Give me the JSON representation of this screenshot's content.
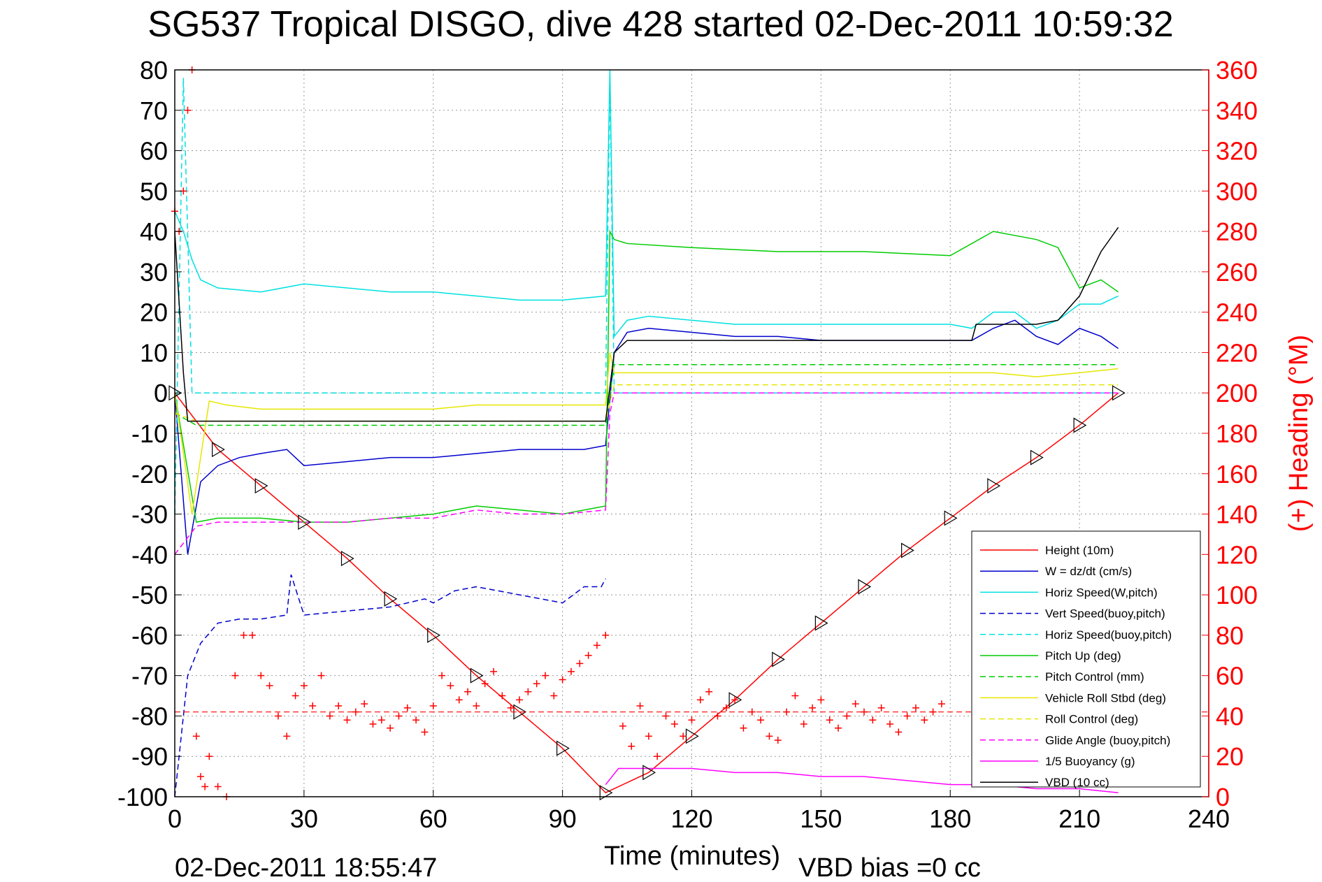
{
  "chart_data": {
    "type": "line",
    "title": "SG537 Tropical DISGO, dive 428 started 02-Dec-2011 10:59:32",
    "xlabel": "Time (minutes)",
    "ylabel": "",
    "y2label": "(+) Heading (°M)",
    "xlim": [
      0,
      240
    ],
    "ylim": [
      -100,
      80
    ],
    "y2lim": [
      0,
      360
    ],
    "xticks": [
      0,
      30,
      60,
      90,
      120,
      150,
      180,
      210,
      240
    ],
    "yticks": [
      -100,
      -90,
      -80,
      -70,
      -60,
      -50,
      -40,
      -30,
      -20,
      -10,
      0,
      10,
      20,
      30,
      40,
      50,
      60,
      70,
      80
    ],
    "y2ticks": [
      0,
      20,
      40,
      60,
      80,
      100,
      120,
      140,
      160,
      180,
      200,
      220,
      240,
      260,
      280,
      300,
      320,
      340,
      360
    ],
    "grid": true,
    "legend_position": "bottom-right",
    "footer_left": "02-Dec-2011 18:55:47",
    "footer_right": "VBD bias =0 cc",
    "colors": {
      "height": "#ff0000",
      "w": "#0000cc",
      "horiz_speed": "#00e0e0",
      "pitch": "#00cc00",
      "roll": "#e6e600",
      "glide": "#ff00ff",
      "vbd": "#000000",
      "heading": "#ff0000",
      "right_axis": "#ff0000"
    },
    "series": [
      {
        "name": "Height (10m)",
        "color": "#ff0000",
        "dash": "solid",
        "axis": "left",
        "x": [
          0,
          10,
          20,
          30,
          40,
          50,
          60,
          70,
          80,
          90,
          100,
          110,
          120,
          130,
          140,
          150,
          160,
          170,
          180,
          190,
          200,
          210,
          219
        ],
        "y": [
          0,
          -14,
          -23,
          -32,
          -41,
          -51,
          -60,
          -70,
          -79,
          -88,
          -99,
          -94,
          -85,
          -76,
          -66,
          -57,
          -48,
          -39,
          -31,
          -23,
          -16,
          -8,
          0
        ]
      },
      {
        "name": "W = dz/dt (cm/s)",
        "color": "#0000cc",
        "dash": "solid",
        "axis": "left",
        "x": [
          0,
          3,
          6,
          10,
          15,
          20,
          26,
          30,
          40,
          50,
          60,
          70,
          80,
          90,
          95,
          100,
          102,
          105,
          110,
          120,
          130,
          140,
          150,
          160,
          170,
          180,
          185,
          190,
          195,
          200,
          205,
          210,
          215,
          219
        ],
        "y": [
          0,
          -40,
          -22,
          -18,
          -16,
          -15,
          -14,
          -18,
          -17,
          -16,
          -16,
          -15,
          -14,
          -14,
          -14,
          -13,
          10,
          15,
          16,
          15,
          14,
          14,
          13,
          13,
          13,
          13,
          13,
          16,
          18,
          14,
          12,
          16,
          14,
          11
        ]
      },
      {
        "name": "Horiz Speed(W,pitch)",
        "color": "#00e0e0",
        "dash": "solid",
        "axis": "left",
        "x": [
          0,
          2,
          4,
          6,
          10,
          20,
          30,
          40,
          50,
          60,
          70,
          80,
          90,
          100,
          101,
          102,
          105,
          110,
          120,
          130,
          140,
          150,
          160,
          170,
          180,
          185,
          190,
          195,
          200,
          205,
          210,
          215,
          219
        ],
        "y": [
          45,
          40,
          33,
          28,
          26,
          25,
          27,
          26,
          25,
          25,
          24,
          23,
          23,
          24,
          80,
          14,
          18,
          19,
          18,
          17,
          17,
          17,
          17,
          17,
          17,
          16,
          20,
          20,
          16,
          18,
          22,
          22,
          24
        ]
      },
      {
        "name": "Vert Speed(buoy,pitch)",
        "color": "#0000cc",
        "dash": "dashed",
        "axis": "left",
        "x": [
          0,
          3,
          6,
          10,
          15,
          20,
          26,
          27,
          30,
          40,
          50,
          58,
          60,
          65,
          70,
          80,
          90,
          95,
          99,
          100
        ],
        "y": [
          -100,
          -70,
          -62,
          -57,
          -56,
          -56,
          -55,
          -45,
          -55,
          -54,
          -53,
          -51,
          -52,
          -49,
          -48,
          -50,
          -52,
          -48,
          -48,
          -46
        ]
      },
      {
        "name": "Horiz Speed(buoy,pitch)",
        "color": "#00e0e0",
        "dash": "dashed",
        "axis": "left",
        "x": [
          0,
          2,
          4,
          100,
          101,
          102,
          219
        ],
        "y": [
          -30,
          78,
          0,
          0,
          78,
          0,
          0
        ]
      },
      {
        "name": "Pitch Up (deg)",
        "color": "#00cc00",
        "dash": "solid",
        "axis": "left",
        "x": [
          0,
          5,
          10,
          20,
          30,
          40,
          50,
          60,
          65,
          70,
          80,
          90,
          95,
          100,
          101,
          102,
          105,
          120,
          140,
          160,
          180,
          190,
          200,
          205,
          210,
          215,
          219
        ],
        "y": [
          0,
          -32,
          -31,
          -31,
          -32,
          -32,
          -31,
          -30,
          -29,
          -28,
          -29,
          -30,
          -29,
          -28,
          40,
          38,
          37,
          36,
          35,
          35,
          34,
          40,
          38,
          36,
          26,
          28,
          25
        ]
      },
      {
        "name": "Pitch Control (mm)",
        "color": "#00cc00",
        "dash": "dashed",
        "axis": "left",
        "x": [
          0,
          5,
          100,
          102,
          219
        ],
        "y": [
          -5,
          -8,
          -8,
          7,
          7
        ]
      },
      {
        "name": "Vehicle Roll Stbd (deg)",
        "color": "#e6e600",
        "dash": "solid",
        "axis": "left",
        "x": [
          0,
          4,
          8,
          12,
          20,
          30,
          40,
          50,
          60,
          70,
          80,
          90,
          100,
          101,
          102,
          110,
          120,
          140,
          160,
          180,
          190,
          200,
          210,
          219
        ],
        "y": [
          0,
          -30,
          -2,
          -3,
          -4,
          -4,
          -4,
          -4,
          -4,
          -3,
          -3,
          -3,
          -3,
          10,
          5,
          5,
          5,
          5,
          5,
          5,
          5,
          4,
          5,
          6
        ]
      },
      {
        "name": "Roll Control (deg)",
        "color": "#e6e600",
        "dash": "dashed",
        "axis": "left",
        "x": [
          0,
          5,
          100,
          102,
          219
        ],
        "y": [
          -5,
          -7,
          -7,
          2,
          2
        ]
      },
      {
        "name": "Glide Angle (buoy,pitch)",
        "color": "#ff00ff",
        "dash": "dashed",
        "axis": "left",
        "x": [
          0,
          5,
          10,
          20,
          30,
          40,
          50,
          60,
          70,
          80,
          90,
          100,
          101,
          102,
          219
        ],
        "y": [
          -40,
          -33,
          -32,
          -32,
          -32,
          -32,
          -31,
          -31,
          -29,
          -30,
          -30,
          -29,
          -5,
          0,
          0
        ]
      },
      {
        "name": "1/5 Buoyancy (g)",
        "color": "#ff00ff",
        "dash": "solid",
        "axis": "left",
        "x": [
          100,
          103,
          110,
          120,
          130,
          140,
          150,
          160,
          170,
          180,
          190,
          200,
          210,
          219
        ],
        "y": [
          -97,
          -93,
          -93,
          -93,
          -94,
          -94,
          -95,
          -95,
          -96,
          -97,
          -97,
          -98,
          -98,
          -99
        ]
      },
      {
        "name": "VBD (10 cc)",
        "color": "#000000",
        "dash": "solid",
        "axis": "left",
        "x": [
          0,
          2,
          3,
          100,
          102,
          105,
          120,
          140,
          160,
          180,
          185,
          186,
          190,
          200,
          205,
          210,
          215,
          219
        ],
        "y": [
          40,
          5,
          -7,
          -7,
          10,
          13,
          13,
          13,
          13,
          13,
          13,
          17,
          17,
          17,
          18,
          24,
          35,
          41
        ]
      }
    ],
    "heading_points": {
      "name": "(+) Heading",
      "color": "#ff0000",
      "axis": "right",
      "x": [
        0,
        1,
        2,
        3,
        4,
        5,
        6,
        7,
        8,
        10,
        12,
        14,
        16,
        18,
        20,
        22,
        24,
        26,
        28,
        30,
        32,
        34,
        36,
        38,
        40,
        42,
        44,
        46,
        48,
        50,
        52,
        54,
        56,
        58,
        60,
        62,
        64,
        66,
        68,
        70,
        72,
        74,
        76,
        78,
        80,
        82,
        84,
        86,
        88,
        90,
        92,
        94,
        96,
        98,
        100,
        104,
        106,
        108,
        110,
        112,
        114,
        116,
        118,
        120,
        122,
        124,
        126,
        128,
        130,
        132,
        134,
        136,
        138,
        140,
        142,
        144,
        146,
        148,
        150,
        152,
        154,
        156,
        158,
        160,
        162,
        164,
        166,
        168,
        170,
        172,
        174,
        176,
        178
      ],
      "y": [
        290,
        280,
        300,
        340,
        360,
        30,
        10,
        5,
        20,
        5,
        0,
        60,
        80,
        80,
        60,
        55,
        40,
        30,
        50,
        55,
        45,
        60,
        40,
        45,
        38,
        42,
        46,
        36,
        38,
        34,
        40,
        44,
        38,
        32,
        45,
        60,
        55,
        48,
        52,
        45,
        56,
        62,
        50,
        44,
        48,
        52,
        56,
        60,
        50,
        58,
        62,
        66,
        70,
        75,
        80,
        35,
        25,
        45,
        30,
        20,
        40,
        36,
        30,
        38,
        48,
        52,
        40,
        44,
        48,
        34,
        42,
        38,
        30,
        28,
        42,
        50,
        36,
        44,
        48,
        38,
        34,
        40,
        46,
        42,
        38,
        44,
        36,
        32,
        40,
        44,
        38,
        42,
        46
      ]
    },
    "heading_mean": {
      "value": 42,
      "color": "#ff0000",
      "dash": "dashed",
      "axis": "right"
    }
  }
}
